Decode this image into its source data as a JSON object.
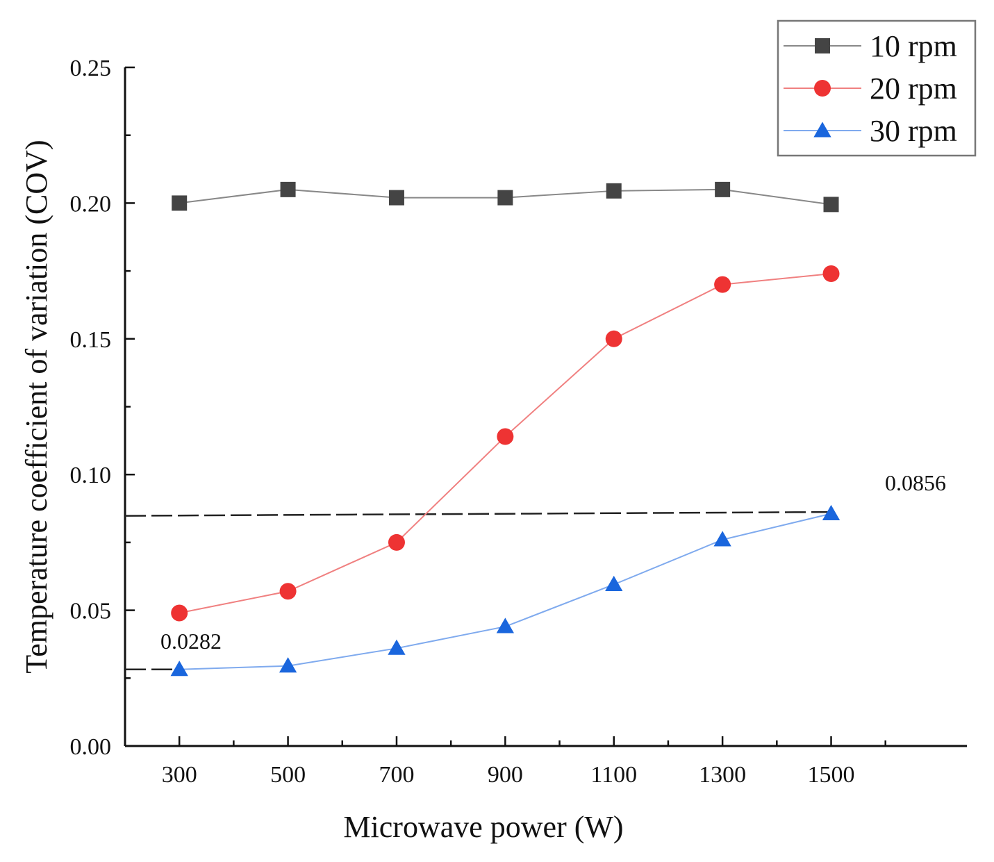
{
  "chart_data": {
    "type": "line",
    "xlabel": "Microwave power (W)",
    "ylabel": "Temperature coefficient of variation (COV)",
    "xlim": [
      200,
      1750
    ],
    "ylim": [
      0,
      0.25
    ],
    "x": [
      300,
      500,
      700,
      900,
      1100,
      1300,
      1500
    ],
    "x_tick_labels": [
      "300",
      "500",
      "700",
      "900",
      "1100",
      "1300",
      "1500"
    ],
    "y_ticks": [
      0,
      0.05,
      0.1,
      0.15,
      0.2,
      0.25
    ],
    "y_tick_labels": [
      "0.00",
      "0.05",
      "0.10",
      "0.15",
      "0.20",
      "0.25"
    ],
    "series": [
      {
        "name": "10 rpm",
        "marker": "square",
        "color": "#444444",
        "line_color": "#888888",
        "values": [
          0.2,
          0.205,
          0.202,
          0.202,
          0.2045,
          0.205,
          0.1995
        ]
      },
      {
        "name": "20 rpm",
        "marker": "circle",
        "color": "#ee3333",
        "line_color": "#f08080",
        "values": [
          0.049,
          0.057,
          0.075,
          0.114,
          0.15,
          0.17,
          0.174
        ]
      },
      {
        "name": "30 rpm",
        "marker": "triangle",
        "color": "#1a66dd",
        "line_color": "#7faaee",
        "values": [
          0.0282,
          0.0295,
          0.036,
          0.044,
          0.0595,
          0.076,
          0.0856
        ]
      }
    ],
    "reference_lines": [
      {
        "label": "0.0856",
        "y_start": 0.0848,
        "y_end": 0.0862,
        "x_start": 200,
        "x_end": 1500
      },
      {
        "label": "0.0282",
        "y_start": 0.0282,
        "y_end": 0.0282,
        "x_start": 200,
        "x_end": 300
      }
    ],
    "legend_position": "top-right",
    "grid": false
  }
}
